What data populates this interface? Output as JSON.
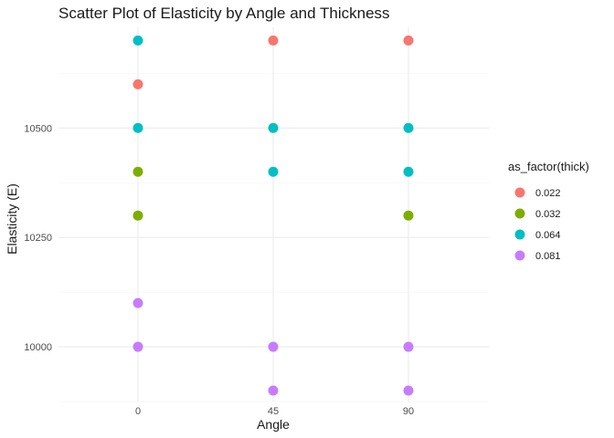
{
  "chart_data": {
    "type": "scatter",
    "title": "Scatter Plot of Elasticity by Angle and Thickness",
    "xlabel": "Angle",
    "ylabel": "Elasticity (E)",
    "x_categories": [
      "0",
      "45",
      "90"
    ],
    "y_ticks": [
      10000,
      10250,
      10500
    ],
    "ylim": [
      9875,
      10730
    ],
    "grid": true,
    "legend": {
      "title": "as_factor(thick)",
      "placement": "right"
    },
    "series": [
      {
        "name": "0.022",
        "color": "#F8766D",
        "points": [
          {
            "x": "0",
            "y": 10600
          },
          {
            "x": "45",
            "y": 10700
          },
          {
            "x": "90",
            "y": 10700
          }
        ]
      },
      {
        "name": "0.032",
        "color": "#7CAE00",
        "points": [
          {
            "x": "0",
            "y": 10400
          },
          {
            "x": "0",
            "y": 10300
          },
          {
            "x": "90",
            "y": 10300
          }
        ]
      },
      {
        "name": "0.064",
        "color": "#00BFC4",
        "points": [
          {
            "x": "0",
            "y": 10700
          },
          {
            "x": "0",
            "y": 10500
          },
          {
            "x": "45",
            "y": 10500
          },
          {
            "x": "45",
            "y": 10400
          },
          {
            "x": "90",
            "y": 10500
          },
          {
            "x": "90",
            "y": 10400
          }
        ]
      },
      {
        "name": "0.081",
        "color": "#C77CFF",
        "points": [
          {
            "x": "0",
            "y": 10100
          },
          {
            "x": "0",
            "y": 10000
          },
          {
            "x": "45",
            "y": 10000
          },
          {
            "x": "45",
            "y": 9900
          },
          {
            "x": "90",
            "y": 10000
          },
          {
            "x": "90",
            "y": 9900
          }
        ]
      }
    ]
  }
}
